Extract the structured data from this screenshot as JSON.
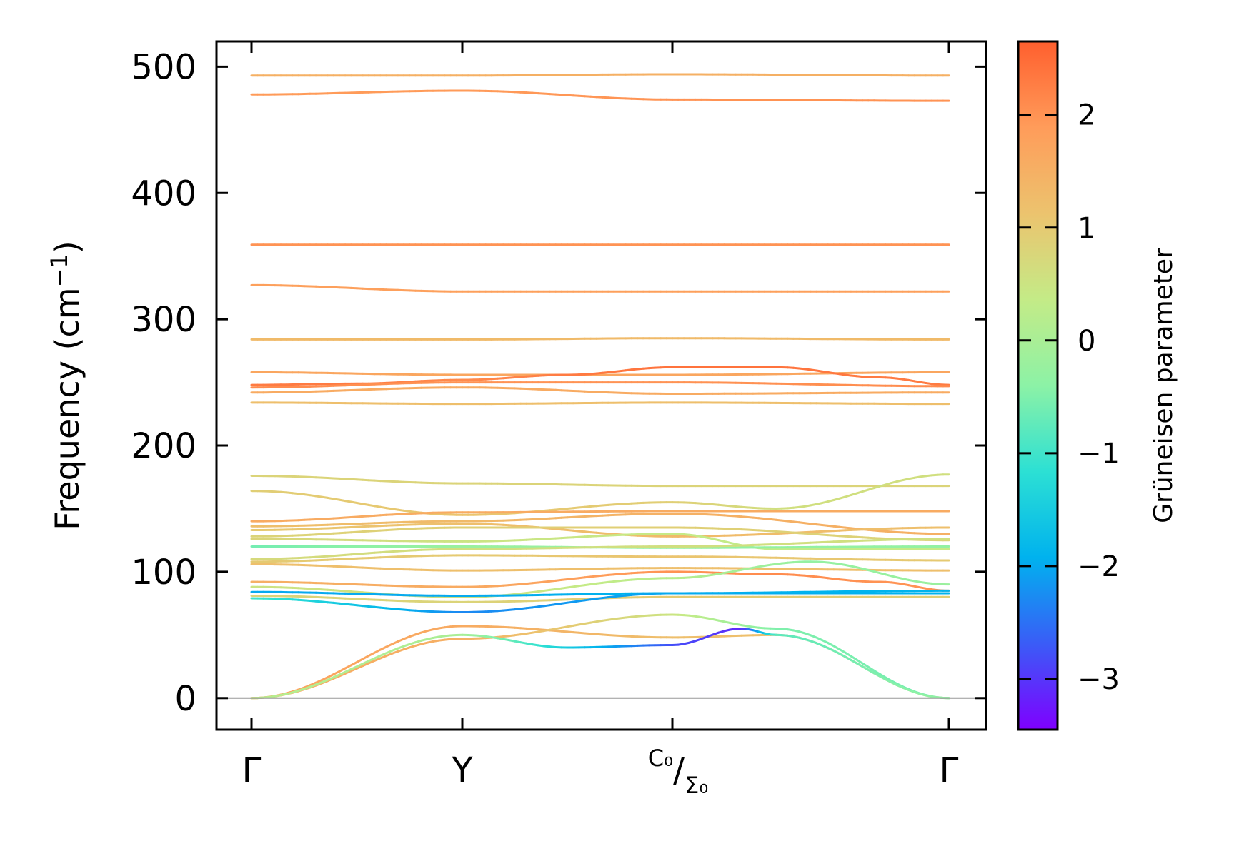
{
  "chart_data": {
    "type": "line",
    "title": "",
    "ylabel": "Frequency (cm",
    "ylabel_sup": "−1",
    "ylabel_close": ")",
    "ylim": [
      -25,
      520
    ],
    "yticks": [
      0,
      100,
      200,
      300,
      400,
      500
    ],
    "ytick_labels": [
      "0",
      "100",
      "200",
      "300",
      "400",
      "500"
    ],
    "x_path_positions": [
      0,
      0.3,
      0.6,
      1.0
    ],
    "x_tick_labels": [
      {
        "main": "Γ"
      },
      {
        "main": "Y"
      },
      {
        "main": "/",
        "sup": "C₀",
        "sub": "Σ₀"
      },
      {
        "main": "Γ"
      }
    ],
    "zero_line_color": "#999999",
    "colorbar": {
      "label": "Grüneisen parameter",
      "range": [
        -3.45,
        2.65
      ],
      "ticks": [
        -3,
        -2,
        -1,
        0,
        1,
        2
      ],
      "tick_labels": [
        "−3",
        "−2",
        "−1",
        "0",
        "1",
        "2"
      ],
      "colormap": "rainbow",
      "stops": [
        "#7f00ff",
        "#3a5cf7",
        "#00b2ee",
        "#2ce0d4",
        "#8cf2a6",
        "#c4eb87",
        "#ecc36e",
        "#ff9c5a",
        "#ff5f2e"
      ]
    },
    "series": [
      {
        "name": "band-1",
        "x": [
          0,
          0.3,
          0.6,
          1.0
        ],
        "y": [
          493,
          493,
          494,
          493
        ],
        "g": [
          1.5,
          1.5,
          1.5,
          1.5
        ]
      },
      {
        "name": "band-2",
        "x": [
          0,
          0.3,
          0.6,
          1.0
        ],
        "y": [
          478,
          481,
          474,
          473
        ],
        "g": [
          1.9,
          1.9,
          2.0,
          2.0
        ]
      },
      {
        "name": "band-3",
        "x": [
          0,
          0.3,
          0.6,
          1.0
        ],
        "y": [
          359,
          359,
          359,
          359
        ],
        "g": [
          2.0,
          2.0,
          2.0,
          2.0
        ]
      },
      {
        "name": "band-4",
        "x": [
          0,
          0.3,
          0.6,
          1.0
        ],
        "y": [
          327,
          322,
          322,
          322
        ],
        "g": [
          1.8,
          1.8,
          1.8,
          1.8
        ]
      },
      {
        "name": "band-5",
        "x": [
          0,
          0.3,
          0.6,
          1.0
        ],
        "y": [
          284,
          284,
          285,
          284
        ],
        "g": [
          1.3,
          1.3,
          1.3,
          1.3
        ]
      },
      {
        "name": "band-6",
        "x": [
          0,
          0.3,
          0.6,
          1.0
        ],
        "y": [
          258,
          256,
          256,
          258
        ],
        "g": [
          1.7,
          1.7,
          1.7,
          1.7
        ]
      },
      {
        "name": "band-7",
        "x": [
          0,
          0.15,
          0.3,
          0.45,
          0.6,
          0.75,
          0.9,
          1.0
        ],
        "y": [
          248,
          249,
          252,
          256,
          262,
          262,
          254,
          248
        ],
        "g": [
          2.3,
          2.3,
          2.1,
          2.3,
          2.4,
          2.4,
          2.3,
          2.3
        ]
      },
      {
        "name": "band-8",
        "x": [
          0,
          0.3,
          0.6,
          1.0
        ],
        "y": [
          246,
          250,
          250,
          247
        ],
        "g": [
          2.1,
          2.0,
          2.0,
          2.1
        ]
      },
      {
        "name": "band-9",
        "x": [
          0,
          0.3,
          0.6,
          1.0
        ],
        "y": [
          242,
          246,
          241,
          242
        ],
        "g": [
          1.6,
          1.6,
          1.6,
          1.6
        ]
      },
      {
        "name": "band-10",
        "x": [
          0,
          0.3,
          0.6,
          1.0
        ],
        "y": [
          234,
          233,
          234,
          233
        ],
        "g": [
          1.2,
          1.2,
          1.2,
          1.2
        ]
      },
      {
        "name": "band-11",
        "x": [
          0,
          0.3,
          0.6,
          1.0
        ],
        "y": [
          176,
          170,
          168,
          168
        ],
        "g": [
          0.8,
          0.8,
          0.8,
          0.8
        ]
      },
      {
        "name": "band-12",
        "x": [
          0,
          0.3,
          0.6,
          0.75,
          1.0
        ],
        "y": [
          164,
          145,
          155,
          150,
          177
        ],
        "g": [
          0.9,
          1.1,
          0.9,
          0.6,
          0.6
        ]
      },
      {
        "name": "band-13",
        "x": [
          0,
          0.3,
          0.6,
          1.0
        ],
        "y": [
          140,
          147,
          148,
          148
        ],
        "g": [
          1.6,
          1.6,
          1.6,
          1.6
        ]
      },
      {
        "name": "band-14",
        "x": [
          0,
          0.3,
          0.6,
          1.0
        ],
        "y": [
          136,
          140,
          146,
          130
        ],
        "g": [
          1.2,
          1.3,
          1.5,
          1.5
        ]
      },
      {
        "name": "band-15",
        "x": [
          0,
          0.3,
          0.6,
          1.0
        ],
        "y": [
          133,
          138,
          128,
          135
        ],
        "g": [
          1.0,
          1.2,
          1.3,
          1.2
        ]
      },
      {
        "name": "band-16",
        "x": [
          0,
          0.3,
          0.6,
          1.0
        ],
        "y": [
          128,
          135,
          135,
          125
        ],
        "g": [
          0.8,
          0.9,
          0.9,
          0.8
        ]
      },
      {
        "name": "band-17",
        "x": [
          0,
          0.3,
          0.6,
          0.75,
          1.0
        ],
        "y": [
          126,
          124,
          130,
          118,
          118
        ],
        "g": [
          0.8,
          0.5,
          0.4,
          0.3,
          0.4
        ]
      },
      {
        "name": "band-18",
        "x": [
          0,
          0.3,
          0.6,
          1.0
        ],
        "y": [
          120,
          120,
          119,
          120
        ],
        "g": [
          -0.6,
          -0.2,
          -0.3,
          -0.3
        ]
      },
      {
        "name": "band-19",
        "x": [
          0,
          0.3,
          0.6,
          1.0
        ],
        "y": [
          110,
          118,
          120,
          126
        ],
        "g": [
          0.7,
          0.6,
          0.6,
          0.6
        ]
      },
      {
        "name": "band-20",
        "x": [
          0,
          0.3,
          0.6,
          1.0
        ],
        "y": [
          108,
          113,
          112,
          109
        ],
        "g": [
          1.0,
          1.0,
          1.1,
          1.0
        ]
      },
      {
        "name": "band-21",
        "x": [
          0,
          0.3,
          0.6,
          1.0
        ],
        "y": [
          106,
          101,
          103,
          101
        ],
        "g": [
          1.2,
          1.2,
          1.2,
          1.2
        ]
      },
      {
        "name": "band-22",
        "x": [
          0,
          0.3,
          0.6,
          0.75,
          0.9,
          1.0
        ],
        "y": [
          92,
          88,
          100,
          98,
          92,
          85
        ],
        "g": [
          1.5,
          1.6,
          2.0,
          2.1,
          2.0,
          2.0
        ]
      },
      {
        "name": "band-23",
        "x": [
          0,
          0.3,
          0.6,
          0.8,
          1.0
        ],
        "y": [
          88,
          80,
          95,
          108,
          90
        ],
        "g": [
          0.5,
          0.6,
          0.2,
          -0.3,
          -0.2
        ]
      },
      {
        "name": "band-24",
        "x": [
          0,
          0.3,
          0.6,
          1.0
        ],
        "y": [
          84,
          81,
          83,
          85
        ],
        "g": [
          -2.0,
          -2.0,
          -1.9,
          -1.9
        ]
      },
      {
        "name": "band-25",
        "x": [
          0,
          0.3,
          0.6,
          1.0
        ],
        "y": [
          81,
          76,
          80,
          80
        ],
        "g": [
          0.8,
          0.8,
          1.0,
          0.9
        ]
      },
      {
        "name": "band-26",
        "x": [
          0,
          0.3,
          0.6,
          1.0
        ],
        "y": [
          79,
          68,
          83,
          83
        ],
        "g": [
          -1.0,
          -2.3,
          -2.0,
          -1.9
        ]
      },
      {
        "name": "band-27",
        "x": [
          0,
          0.3,
          0.6,
          0.75,
          1.0
        ],
        "y": [
          0,
          57,
          48,
          50,
          0
        ],
        "g": [
          1.8,
          1.6,
          1.2,
          1.2,
          1.1
        ]
      },
      {
        "name": "band-28",
        "x": [
          0,
          0.3,
          0.6,
          0.75,
          1.0
        ],
        "y": [
          0,
          47,
          66,
          55,
          0
        ],
        "g": [
          1.6,
          1.5,
          0.5,
          -0.5,
          -0.6
        ]
      },
      {
        "name": "band-29",
        "x": [
          0,
          0.3,
          0.45,
          0.6,
          0.7,
          0.75,
          1.0
        ],
        "y": [
          0,
          50,
          40,
          42,
          55,
          50,
          0
        ],
        "g": [
          0.2,
          0.0,
          -1.5,
          -2.8,
          -3.1,
          -0.8,
          -0.3
        ]
      }
    ]
  }
}
